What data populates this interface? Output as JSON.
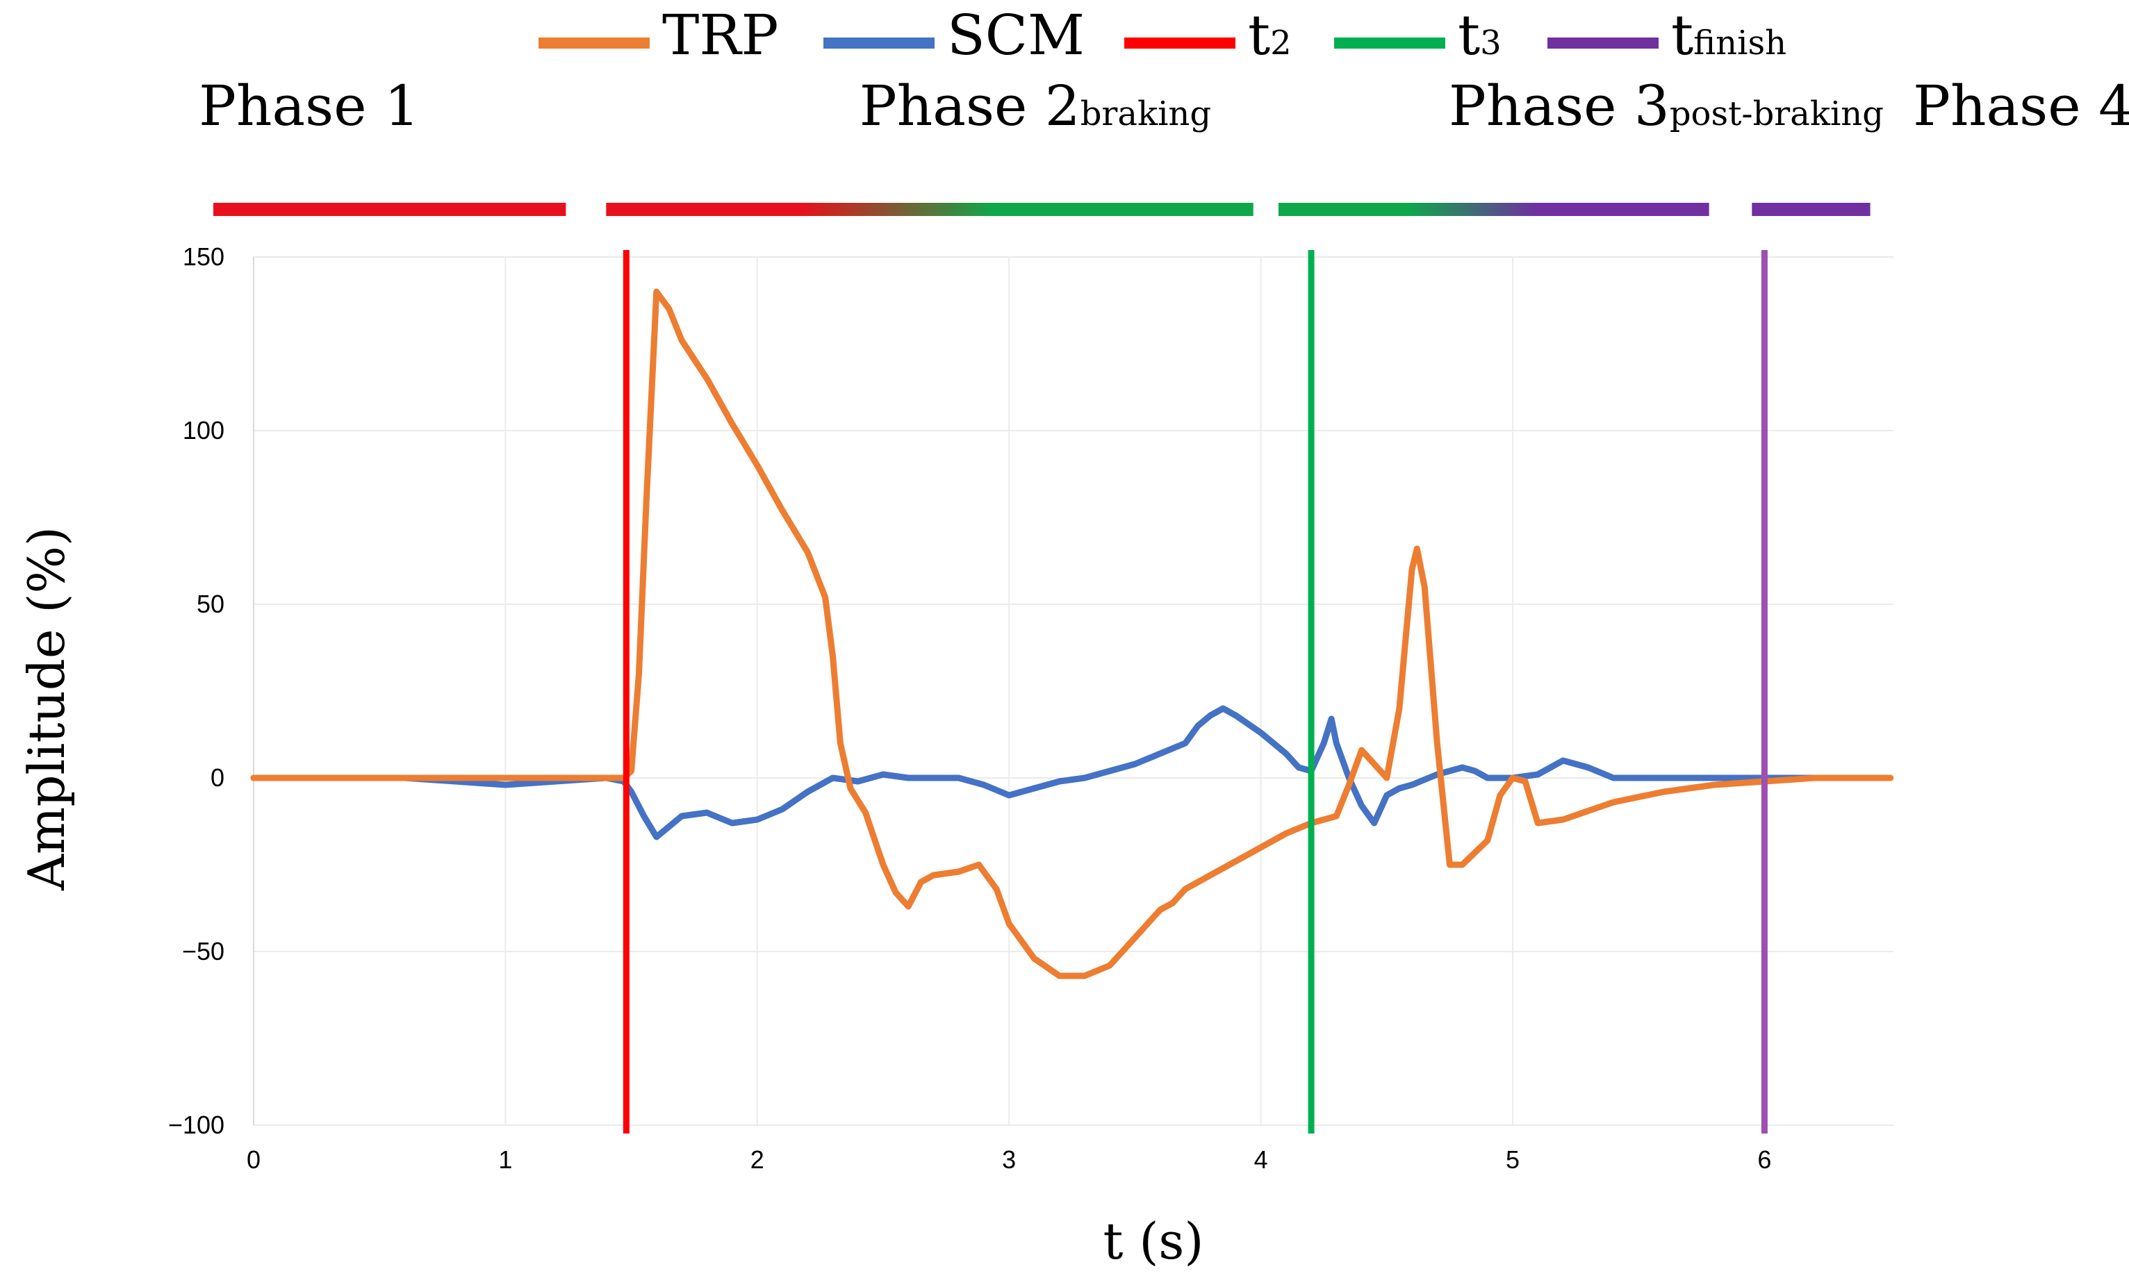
{
  "chart_data": {
    "type": "line",
    "xlabel": "t (s)",
    "ylabel": "Amplitude (%)",
    "xlim": [
      0,
      6.5
    ],
    "ylim": [
      -100,
      150
    ],
    "x_ticks": [
      0,
      1,
      2,
      3,
      4,
      5,
      6
    ],
    "y_ticks": [
      {
        "value": 150,
        "label": "150"
      },
      {
        "value": 100,
        "label": "100"
      },
      {
        "value": 50,
        "label": "50"
      },
      {
        "value": 0,
        "label": "0"
      },
      {
        "value": -50,
        "label": "−50"
      },
      {
        "value": -100,
        "label": "−100"
      }
    ],
    "grid": true,
    "legend_position": "top",
    "legend": [
      {
        "key": "trp",
        "base": "TRP",
        "sub": "",
        "color": "#ED7D31"
      },
      {
        "key": "scm",
        "base": "SCM",
        "sub": "",
        "color": "#4472C4"
      },
      {
        "key": "t2",
        "base": "t",
        "sub": "2",
        "color": "#FF0000"
      },
      {
        "key": "t3",
        "base": "t",
        "sub": "3",
        "color": "#00B050"
      },
      {
        "key": "tfinish",
        "base": "t",
        "sub": "finish",
        "color": "#7030A0"
      }
    ],
    "phases": [
      {
        "base": "Phase 1",
        "sub": "",
        "start": -0.16,
        "end": 1.24,
        "from": "#E8101C",
        "to": "#E8101C"
      },
      {
        "base": "Phase 2",
        "sub": "braking",
        "start": 1.4,
        "end": 3.97,
        "from": "#E8101C",
        "to": "#0EA84A"
      },
      {
        "base": "Phase 3",
        "sub": "post-braking",
        "start": 4.07,
        "end": 5.78,
        "from": "#0EA84A",
        "to": "#7030A0"
      },
      {
        "base": "Phase 4",
        "sub": "",
        "start": 5.95,
        "end": 6.42,
        "from": "#7030A0",
        "to": "#7030A0"
      }
    ],
    "events": [
      {
        "name": "t2",
        "x": 1.48,
        "color": "#FF0000"
      },
      {
        "name": "t3",
        "x": 4.2,
        "color": "#00B050"
      },
      {
        "name": "tfinish",
        "x": 6.0,
        "color": "#9E4FB0"
      }
    ],
    "series": [
      {
        "name": "TRP",
        "color": "#ED7D31",
        "points": [
          [
            0,
            0
          ],
          [
            0.5,
            0
          ],
          [
            1.0,
            0
          ],
          [
            1.47,
            0
          ],
          [
            1.5,
            2
          ],
          [
            1.53,
            30
          ],
          [
            1.56,
            80
          ],
          [
            1.6,
            140
          ],
          [
            1.65,
            135
          ],
          [
            1.7,
            126
          ],
          [
            1.8,
            115
          ],
          [
            1.9,
            102
          ],
          [
            2.0,
            90
          ],
          [
            2.1,
            77
          ],
          [
            2.2,
            65
          ],
          [
            2.27,
            52
          ],
          [
            2.3,
            35
          ],
          [
            2.33,
            10
          ],
          [
            2.37,
            -3
          ],
          [
            2.43,
            -10
          ],
          [
            2.5,
            -25
          ],
          [
            2.55,
            -33
          ],
          [
            2.6,
            -37
          ],
          [
            2.65,
            -30
          ],
          [
            2.7,
            -28
          ],
          [
            2.8,
            -27
          ],
          [
            2.88,
            -25
          ],
          [
            2.95,
            -32
          ],
          [
            3.0,
            -42
          ],
          [
            3.1,
            -52
          ],
          [
            3.2,
            -57
          ],
          [
            3.3,
            -57
          ],
          [
            3.4,
            -54
          ],
          [
            3.5,
            -46
          ],
          [
            3.6,
            -38
          ],
          [
            3.65,
            -36
          ],
          [
            3.7,
            -32
          ],
          [
            3.8,
            -28
          ],
          [
            3.9,
            -24
          ],
          [
            4.0,
            -20
          ],
          [
            4.1,
            -16
          ],
          [
            4.2,
            -13
          ],
          [
            4.3,
            -11
          ],
          [
            4.35,
            -2
          ],
          [
            4.4,
            8
          ],
          [
            4.45,
            4
          ],
          [
            4.5,
            0
          ],
          [
            4.55,
            20
          ],
          [
            4.6,
            60
          ],
          [
            4.62,
            66
          ],
          [
            4.65,
            55
          ],
          [
            4.7,
            10
          ],
          [
            4.75,
            -25
          ],
          [
            4.8,
            -25
          ],
          [
            4.9,
            -18
          ],
          [
            4.95,
            -5
          ],
          [
            5.0,
            0
          ],
          [
            5.05,
            -1
          ],
          [
            5.1,
            -13
          ],
          [
            5.2,
            -12
          ],
          [
            5.4,
            -7
          ],
          [
            5.6,
            -4
          ],
          [
            5.8,
            -2
          ],
          [
            6.0,
            -1
          ],
          [
            6.2,
            0
          ],
          [
            6.5,
            0
          ]
        ]
      },
      {
        "name": "SCM",
        "color": "#4472C4",
        "points": [
          [
            0,
            0
          ],
          [
            0.2,
            0
          ],
          [
            0.6,
            0
          ],
          [
            1.0,
            -2
          ],
          [
            1.2,
            -1
          ],
          [
            1.4,
            0
          ],
          [
            1.47,
            -1
          ],
          [
            1.5,
            -4
          ],
          [
            1.55,
            -11
          ],
          [
            1.6,
            -17
          ],
          [
            1.65,
            -14
          ],
          [
            1.7,
            -11
          ],
          [
            1.8,
            -10
          ],
          [
            1.9,
            -13
          ],
          [
            2.0,
            -12
          ],
          [
            2.1,
            -9
          ],
          [
            2.2,
            -4
          ],
          [
            2.3,
            0
          ],
          [
            2.4,
            -1
          ],
          [
            2.5,
            1
          ],
          [
            2.6,
            0
          ],
          [
            2.8,
            0
          ],
          [
            2.9,
            -2
          ],
          [
            3.0,
            -5
          ],
          [
            3.1,
            -3
          ],
          [
            3.2,
            -1
          ],
          [
            3.3,
            0
          ],
          [
            3.4,
            2
          ],
          [
            3.5,
            4
          ],
          [
            3.6,
            7
          ],
          [
            3.7,
            10
          ],
          [
            3.75,
            15
          ],
          [
            3.8,
            18
          ],
          [
            3.85,
            20
          ],
          [
            3.9,
            18
          ],
          [
            4.0,
            13
          ],
          [
            4.1,
            7
          ],
          [
            4.15,
            3
          ],
          [
            4.2,
            2
          ],
          [
            4.25,
            10
          ],
          [
            4.28,
            17
          ],
          [
            4.3,
            10
          ],
          [
            4.35,
            0
          ],
          [
            4.4,
            -8
          ],
          [
            4.45,
            -13
          ],
          [
            4.5,
            -5
          ],
          [
            4.55,
            -3
          ],
          [
            4.6,
            -2
          ],
          [
            4.7,
            1
          ],
          [
            4.8,
            3
          ],
          [
            4.85,
            2
          ],
          [
            4.9,
            0
          ],
          [
            5.0,
            0
          ],
          [
            5.1,
            1
          ],
          [
            5.2,
            5
          ],
          [
            5.3,
            3
          ],
          [
            5.4,
            0
          ],
          [
            5.6,
            0
          ],
          [
            6.0,
            0
          ],
          [
            6.5,
            0
          ]
        ]
      }
    ]
  }
}
